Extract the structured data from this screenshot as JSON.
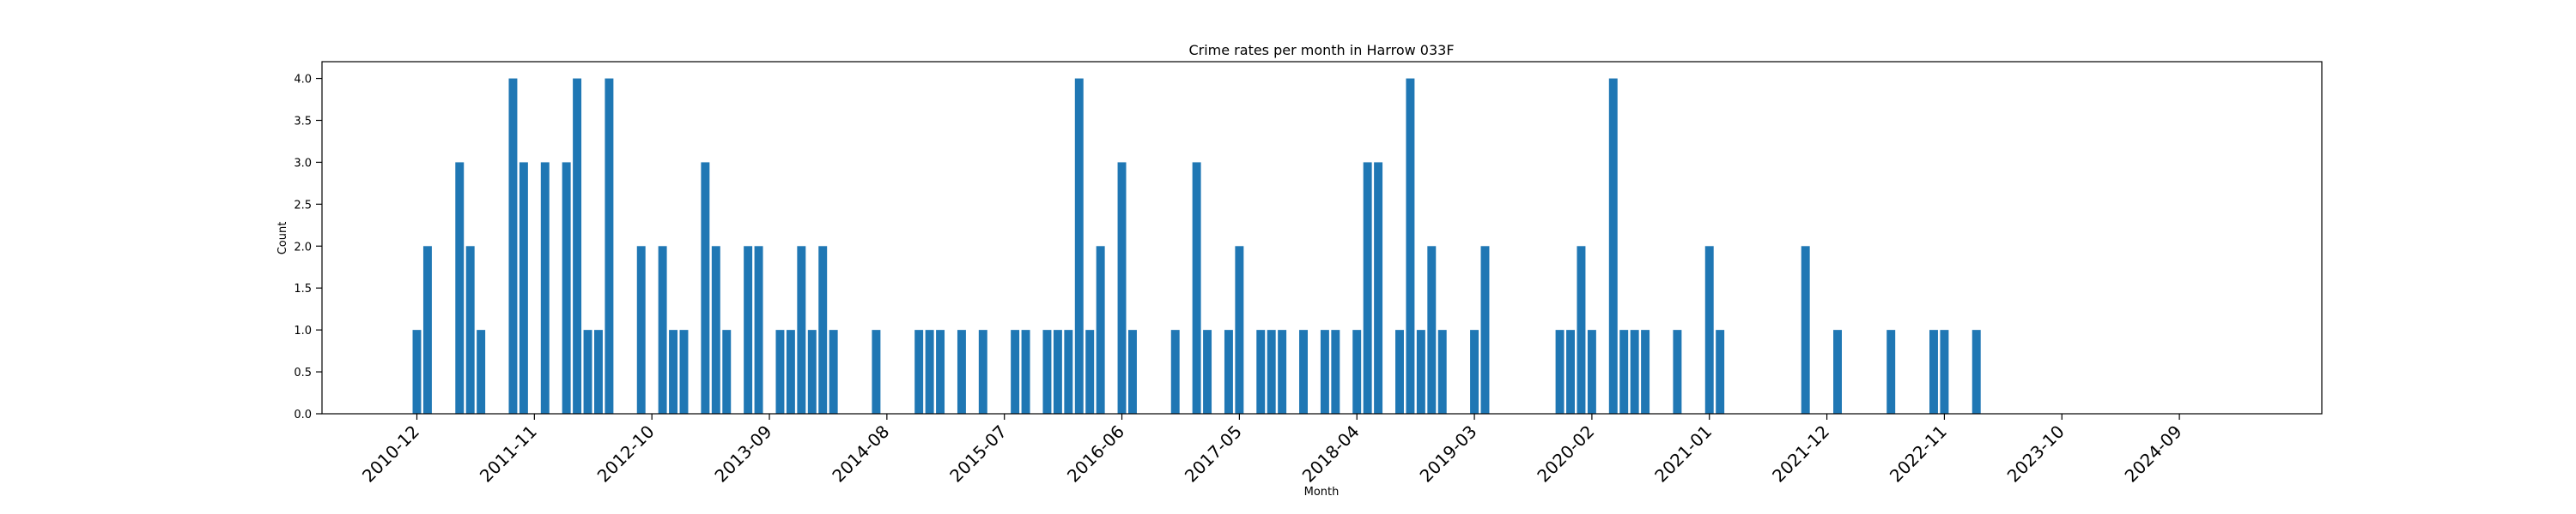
{
  "chart_data": {
    "type": "bar",
    "title": "Crime rates per month in Harrow 033F",
    "xlabel": "Month",
    "ylabel": "Count",
    "ylim": [
      0,
      4.2
    ],
    "yticks": [
      "0.0",
      "0.5",
      "1.0",
      "1.5",
      "2.0",
      "2.5",
      "3.0",
      "3.5",
      "4.0"
    ],
    "xticks": [
      "2010-12",
      "2011-11",
      "2012-10",
      "2013-09",
      "2014-08",
      "2015-07",
      "2016-06",
      "2017-05",
      "2018-04",
      "2019-03",
      "2020-02",
      "2021-01",
      "2021-12",
      "2022-11",
      "2023-10",
      "2024-09"
    ],
    "bar_color": "#1f77b4",
    "grid": false,
    "x": [
      "2010-12",
      "2011-01",
      "2011-04",
      "2011-05",
      "2011-06",
      "2011-09",
      "2011-10",
      "2011-12",
      "2012-02",
      "2012-03",
      "2012-04",
      "2012-05",
      "2012-06",
      "2012-09",
      "2012-11",
      "2012-12",
      "2013-01",
      "2013-03",
      "2013-04",
      "2013-05",
      "2013-07",
      "2013-08",
      "2013-10",
      "2013-11",
      "2013-12",
      "2014-01",
      "2014-02",
      "2014-03",
      "2014-07",
      "2014-11",
      "2014-12",
      "2015-01",
      "2015-03",
      "2015-05",
      "2015-08",
      "2015-09",
      "2015-11",
      "2015-12",
      "2016-01",
      "2016-02",
      "2016-03",
      "2016-04",
      "2016-06",
      "2016-07",
      "2016-11",
      "2017-01",
      "2017-02",
      "2017-04",
      "2017-05",
      "2017-07",
      "2017-08",
      "2017-09",
      "2017-11",
      "2018-01",
      "2018-02",
      "2018-04",
      "2018-05",
      "2018-06",
      "2018-08",
      "2018-09",
      "2018-10",
      "2018-11",
      "2018-12",
      "2019-03",
      "2019-04",
      "2019-11",
      "2019-12",
      "2020-01",
      "2020-02",
      "2020-04",
      "2020-05",
      "2020-06",
      "2020-07",
      "2020-10",
      "2021-01",
      "2021-02",
      "2021-10",
      "2022-01",
      "2022-06",
      "2022-10",
      "2022-11",
      "2023-02"
    ],
    "values": [
      1,
      2,
      3,
      2,
      1,
      4,
      3,
      3,
      3,
      4,
      1,
      1,
      4,
      2,
      2,
      1,
      1,
      3,
      2,
      1,
      2,
      2,
      1,
      1,
      2,
      1,
      2,
      1,
      1,
      1,
      1,
      1,
      1,
      1,
      1,
      1,
      1,
      1,
      1,
      4,
      1,
      2,
      3,
      1,
      1,
      3,
      1,
      1,
      2,
      1,
      1,
      1,
      1,
      1,
      1,
      1,
      3,
      3,
      1,
      4,
      1,
      2,
      1,
      1,
      2,
      1,
      1,
      2,
      1,
      4,
      1,
      1,
      1,
      1,
      2,
      1,
      2,
      1,
      1,
      1,
      1,
      1
    ]
  }
}
